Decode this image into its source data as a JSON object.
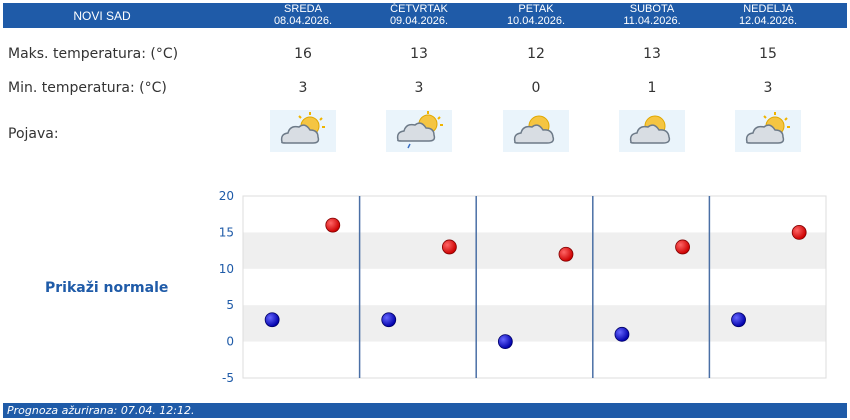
{
  "header": {
    "city": "NOVI SAD",
    "days": [
      {
        "day": "SREDA",
        "date": "08.04.2026."
      },
      {
        "day": "ČETVRTAK",
        "date": "09.04.2026."
      },
      {
        "day": "PETAK",
        "date": "10.04.2026."
      },
      {
        "day": "SUBOTA",
        "date": "11.04.2026."
      },
      {
        "day": "NEDELJA",
        "date": "12.04.2026."
      }
    ]
  },
  "rows": {
    "max_label": "Maks. temperatura: (°C)",
    "min_label": "Min. temperatura: (°C)",
    "phenomenon_label": "Pojava:",
    "max_values": [
      "16",
      "13",
      "12",
      "13",
      "15"
    ],
    "min_values": [
      "3",
      "3",
      "0",
      "1",
      "3"
    ],
    "icons": [
      "sun-cloud-icon",
      "sun-cloud-rain-icon",
      "sun-cloud-icon",
      "sun-cloud-icon",
      "sun-cloud-icon"
    ]
  },
  "normals_link": "Prikaži normale",
  "footer": "Prognoza ažurirana:  07.04. 12:12.",
  "colors": {
    "header_bg": "#1f5ba8",
    "max_dot": "#cc0000",
    "min_dot": "#0000aa",
    "band": "#efefef",
    "divider": "#4a6fa5"
  },
  "chart_data": {
    "type": "scatter",
    "categories": [
      "SREDA",
      "ČETVRTAK",
      "PETAK",
      "SUBOTA",
      "NEDELJA"
    ],
    "series": [
      {
        "values": [
          16,
          13,
          12,
          13,
          15
        ]
      },
      {
        "values": [
          3,
          3,
          0,
          1,
          3
        ]
      }
    ],
    "ylim": [
      -5,
      20
    ],
    "yticks": [
      "20",
      "15",
      "10",
      "5",
      "0",
      "-5"
    ],
    "xlabel": "",
    "ylabel": "",
    "title": ""
  }
}
